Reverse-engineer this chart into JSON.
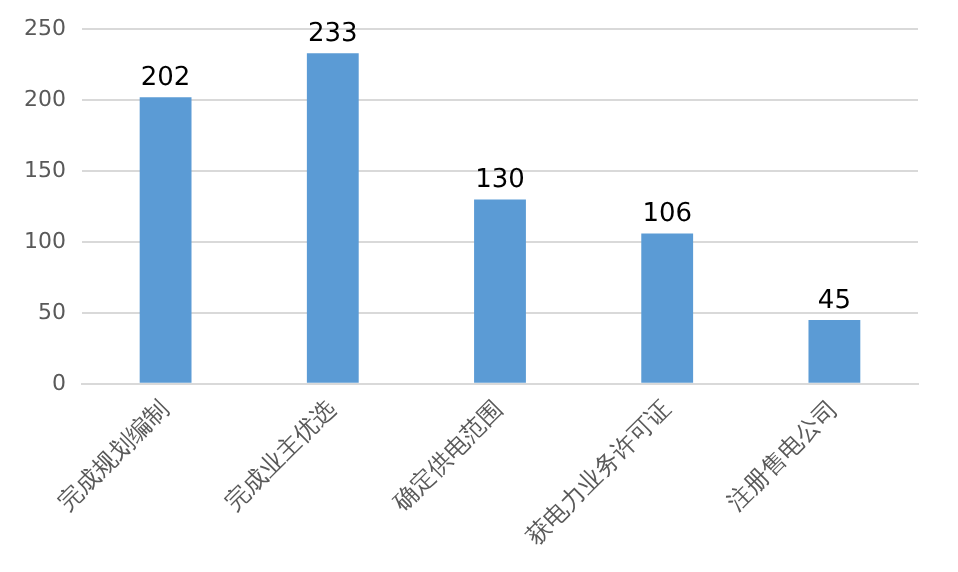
{
  "chart_data": {
    "type": "bar",
    "categories": [
      "完成规划编制",
      "完成业主优选",
      "确定供电范围",
      "获电力业务许可证",
      "注册售电公司"
    ],
    "values": [
      202,
      233,
      130,
      106,
      45
    ],
    "data_labels": true,
    "color": "#5b9bd5",
    "ylim": [
      0,
      250
    ],
    "yticks": [
      0,
      50,
      100,
      150,
      200,
      250
    ],
    "grid": "y",
    "legend": false
  }
}
